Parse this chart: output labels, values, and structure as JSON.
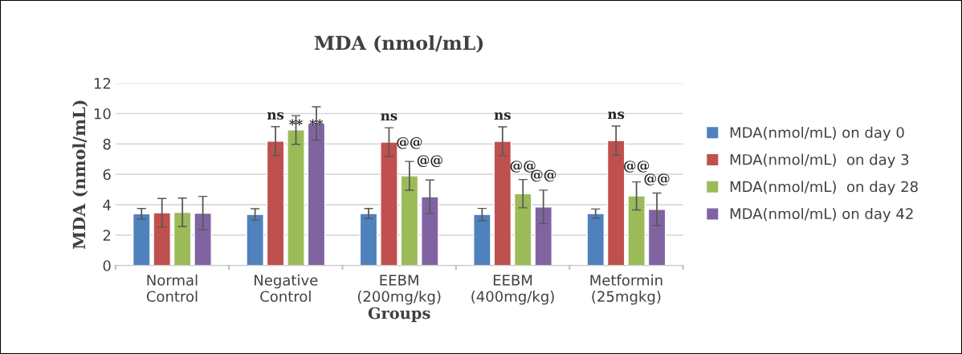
{
  "chart_data": {
    "type": "bar",
    "title": "MDA (nmol/mL)",
    "xlabel": "Groups",
    "ylabel": "MDA (nmol/mL)",
    "categories": [
      "Normal\nControl",
      "Negative\nControl",
      "EEBM\n(200mg/kg)",
      "EEBM\n(400mg/kg)",
      "Metformin\n(25mgkg)"
    ],
    "series": [
      {
        "name": "MDA(nmol/mL) on day 0",
        "color": "#4f81bd",
        "values": [
          3.4,
          3.36,
          3.42,
          3.36,
          3.42
        ],
        "errors": [
          0.35,
          0.38,
          0.33,
          0.4,
          0.3
        ]
      },
      {
        "name": "MDA(nmol/mL)  on day 3",
        "color": "#c0504d",
        "values": [
          3.47,
          8.19,
          8.12,
          8.18,
          8.23
        ],
        "errors": [
          0.94,
          0.95,
          0.95,
          0.95,
          0.95
        ]
      },
      {
        "name": "MDA(nmol/mL)  on day 28",
        "color": "#9bbb59",
        "values": [
          3.5,
          8.92,
          5.9,
          4.73,
          4.58
        ],
        "errors": [
          0.94,
          0.94,
          0.95,
          0.93,
          0.92
        ]
      },
      {
        "name": "MDA(nmol/mL) on day 42",
        "color": "#8064a2",
        "values": [
          3.45,
          9.35,
          4.53,
          3.86,
          3.7
        ],
        "errors": [
          1.1,
          1.1,
          1.1,
          1.1,
          1.07
        ]
      }
    ],
    "annotations": [
      {
        "text": "ns",
        "x": "Negative\nControl",
        "y": 8.19
      },
      {
        "text": "**",
        "x": "Negative\nControl",
        "y": 8.5
      },
      {
        "text": "**",
        "x": "Negative\nControl",
        "y": 8.5
      },
      {
        "text": "ns",
        "x": "EEBM\n(200mg/kg)",
        "y": 8.12
      },
      {
        "text": "@@",
        "x": "EEBM\n(200mg/kg)",
        "y": 7.35
      },
      {
        "text": "@@",
        "x": "EEBM\n(200mg/kg)",
        "y": 6.16
      },
      {
        "text": "ns",
        "x": "EEBM\n(400mg/kg)",
        "y": 8.18
      },
      {
        "text": "@@",
        "x": "EEBM\n(400mg/kg)",
        "y": 5.8
      },
      {
        "text": "@@",
        "x": "EEBM\n(400mg/kg)",
        "y": 5.2
      },
      {
        "text": "ns",
        "x": "Metformin\n(25mgkg)",
        "y": 8.23
      },
      {
        "text": "@@",
        "x": "Metformin\n(25mgkg)",
        "y": 5.8
      },
      {
        "text": "@@",
        "x": "Metformin\n(25mgkg)",
        "y": 4.95
      }
    ],
    "ylim": [
      0,
      12
    ],
    "yticks": [
      0,
      2,
      4,
      6,
      8,
      10,
      12
    ],
    "grid": "y",
    "legend": "right"
  }
}
